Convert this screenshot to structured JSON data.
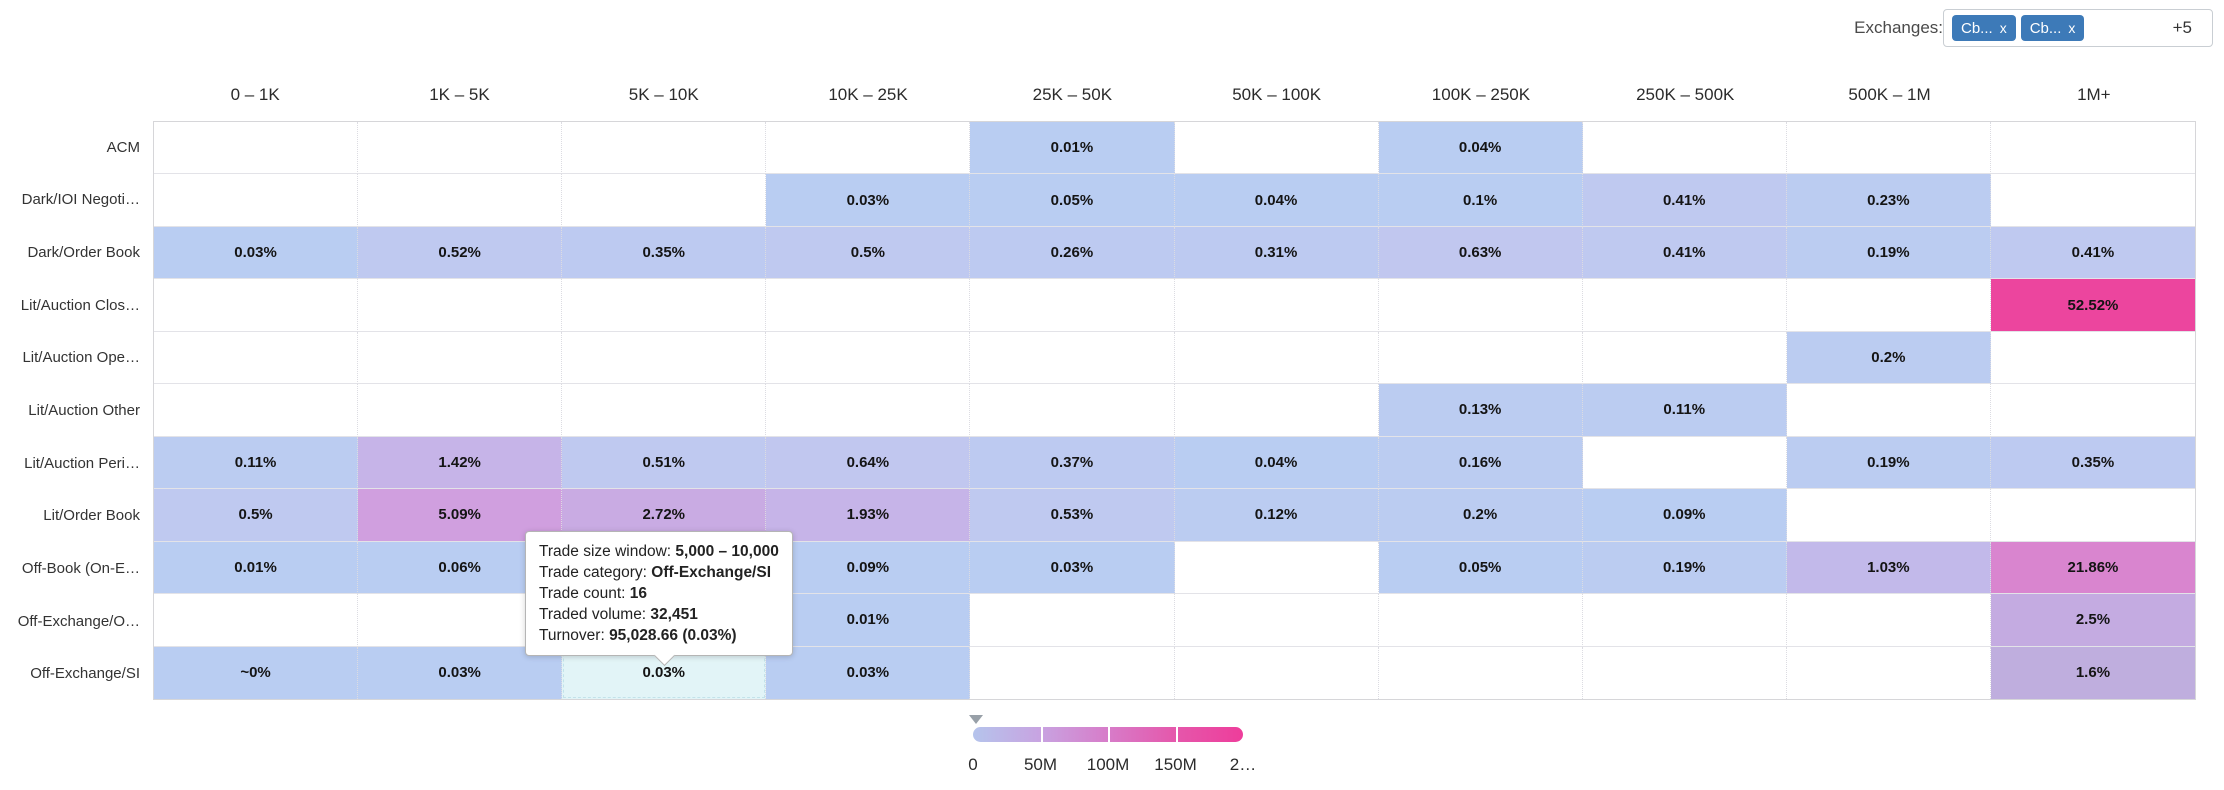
{
  "filters": {
    "label": "Exchanges:",
    "chips": [
      {
        "label": "Cb...",
        "remove": "x"
      },
      {
        "label": "Cb...",
        "remove": "x"
      }
    ],
    "more_count": "+5",
    "chip_color": "#3d7ab8"
  },
  "chart_data": {
    "type": "heatmap",
    "x_axis_label": "trade size window",
    "y_axis_label": "trade category",
    "columns": [
      "0 – 1K",
      "1K – 5K",
      "5K – 10K",
      "10K – 25K",
      "25K – 50K",
      "50K – 100K",
      "100K – 250K",
      "250K – 500K",
      "500K – 1M",
      "1M+"
    ],
    "rows": [
      "ACM",
      "Dark/IOI Negoti…",
      "Dark/Order Book",
      "Lit/Auction Clos…",
      "Lit/Auction Ope…",
      "Lit/Auction Other",
      "Lit/Auction Peri…",
      "Lit/Order Book",
      "Off-Book (On-E…",
      "Off-Exchange/O…",
      "Off-Exchange/SI"
    ],
    "cells": [
      [
        null,
        null,
        null,
        null,
        {
          "v": "0.01%",
          "bg": "#b9cdf2"
        },
        null,
        {
          "v": "0.04%",
          "bg": "#b9cdf2"
        },
        null,
        null,
        null
      ],
      [
        null,
        null,
        null,
        {
          "v": "0.03%",
          "bg": "#b9cdf2"
        },
        {
          "v": "0.05%",
          "bg": "#b9cdf2"
        },
        {
          "v": "0.04%",
          "bg": "#b9cdf2"
        },
        {
          "v": "0.1%",
          "bg": "#b9cdf2"
        },
        {
          "v": "0.41%",
          "bg": "#bfc9f0"
        },
        {
          "v": "0.23%",
          "bg": "#bbccf1"
        },
        null
      ],
      [
        {
          "v": "0.03%",
          "bg": "#b9cdf2"
        },
        {
          "v": "0.52%",
          "bg": "#bfc9f0"
        },
        {
          "v": "0.35%",
          "bg": "#bdcaf1"
        },
        {
          "v": "0.5%",
          "bg": "#bfc9f0"
        },
        {
          "v": "0.26%",
          "bg": "#bdcaf1"
        },
        {
          "v": "0.31%",
          "bg": "#bdcaf1"
        },
        {
          "v": "0.63%",
          "bg": "#c1c7ef"
        },
        {
          "v": "0.41%",
          "bg": "#bfc9f0"
        },
        {
          "v": "0.19%",
          "bg": "#bbccf1"
        },
        {
          "v": "0.41%",
          "bg": "#bfc9f0"
        }
      ],
      [
        null,
        null,
        null,
        null,
        null,
        null,
        null,
        null,
        null,
        {
          "v": "52.52%",
          "bg": "#ec459e"
        }
      ],
      [
        null,
        null,
        null,
        null,
        null,
        null,
        null,
        null,
        {
          "v": "0.2%",
          "bg": "#bbccf1"
        },
        null
      ],
      [
        null,
        null,
        null,
        null,
        null,
        null,
        {
          "v": "0.13%",
          "bg": "#bbccf1"
        },
        {
          "v": "0.11%",
          "bg": "#bbccf1"
        },
        null,
        null
      ],
      [
        {
          "v": "0.11%",
          "bg": "#bbccf1"
        },
        {
          "v": "1.42%",
          "bg": "#c6b4e8"
        },
        {
          "v": "0.51%",
          "bg": "#bfc9f0"
        },
        {
          "v": "0.64%",
          "bg": "#c1c7ef"
        },
        {
          "v": "0.37%",
          "bg": "#bdcaf1"
        },
        {
          "v": "0.04%",
          "bg": "#b9cdf2"
        },
        {
          "v": "0.16%",
          "bg": "#bbccf1"
        },
        null,
        {
          "v": "0.19%",
          "bg": "#bbccf1"
        },
        {
          "v": "0.35%",
          "bg": "#bdcaf1"
        }
      ],
      [
        {
          "v": "0.5%",
          "bg": "#bfc9f0"
        },
        {
          "v": "5.09%",
          "bg": "#d09fdf"
        },
        {
          "v": "2.72%",
          "bg": "#c9abe3"
        },
        {
          "v": "1.93%",
          "bg": "#c6b4e8"
        },
        {
          "v": "0.53%",
          "bg": "#bfc9f0"
        },
        {
          "v": "0.12%",
          "bg": "#bbccf1"
        },
        {
          "v": "0.2%",
          "bg": "#bbccf1"
        },
        {
          "v": "0.09%",
          "bg": "#b9cdf2"
        },
        null,
        null
      ],
      [
        {
          "v": "0.01%",
          "bg": "#b9cdf2"
        },
        {
          "v": "0.06%",
          "bg": "#b9cdf2"
        },
        null,
        {
          "v": "0.09%",
          "bg": "#b9cdf2"
        },
        {
          "v": "0.03%",
          "bg": "#b9cdf2"
        },
        null,
        {
          "v": "0.05%",
          "bg": "#b9cdf2"
        },
        {
          "v": "0.19%",
          "bg": "#bbccf1"
        },
        {
          "v": "1.03%",
          "bg": "#c2b9ea"
        },
        {
          "v": "21.86%",
          "bg": "#d985cf"
        }
      ],
      [
        null,
        null,
        null,
        {
          "v": "0.01%",
          "bg": "#b9cdf2"
        },
        null,
        null,
        null,
        null,
        null,
        {
          "v": "2.5%",
          "bg": "#c4abe1"
        }
      ],
      [
        {
          "v": "~0%",
          "bg": "#b9cdf2"
        },
        {
          "v": "0.03%",
          "bg": "#b9cdf2"
        },
        {
          "v": "0.03%",
          "bg": "#e2f4f7",
          "hover": true
        },
        {
          "v": "0.03%",
          "bg": "#b9cdf2"
        },
        null,
        null,
        null,
        null,
        null,
        {
          "v": "1.6%",
          "bg": "#bfaede"
        }
      ]
    ],
    "legend": {
      "ticks": [
        "0",
        "50M",
        "100M",
        "150M",
        "2…"
      ],
      "gradient": [
        "#b5c4ec",
        "#c8a3e1",
        "#d77cc9",
        "#e557ab",
        "#ee3d9b"
      ],
      "marker_at_tick": "0"
    },
    "tooltip": {
      "lines": [
        {
          "label": "Trade size window: ",
          "value": "5,000 – 10,000"
        },
        {
          "label": "Trade category: ",
          "value": "Off-Exchange/SI"
        },
        {
          "label": "Trade count: ",
          "value": "16"
        },
        {
          "label": "Traded volume: ",
          "value": "32,451"
        },
        {
          "label": "Turnover: ",
          "value": "95,028.66 (0.03%)"
        }
      ]
    }
  }
}
